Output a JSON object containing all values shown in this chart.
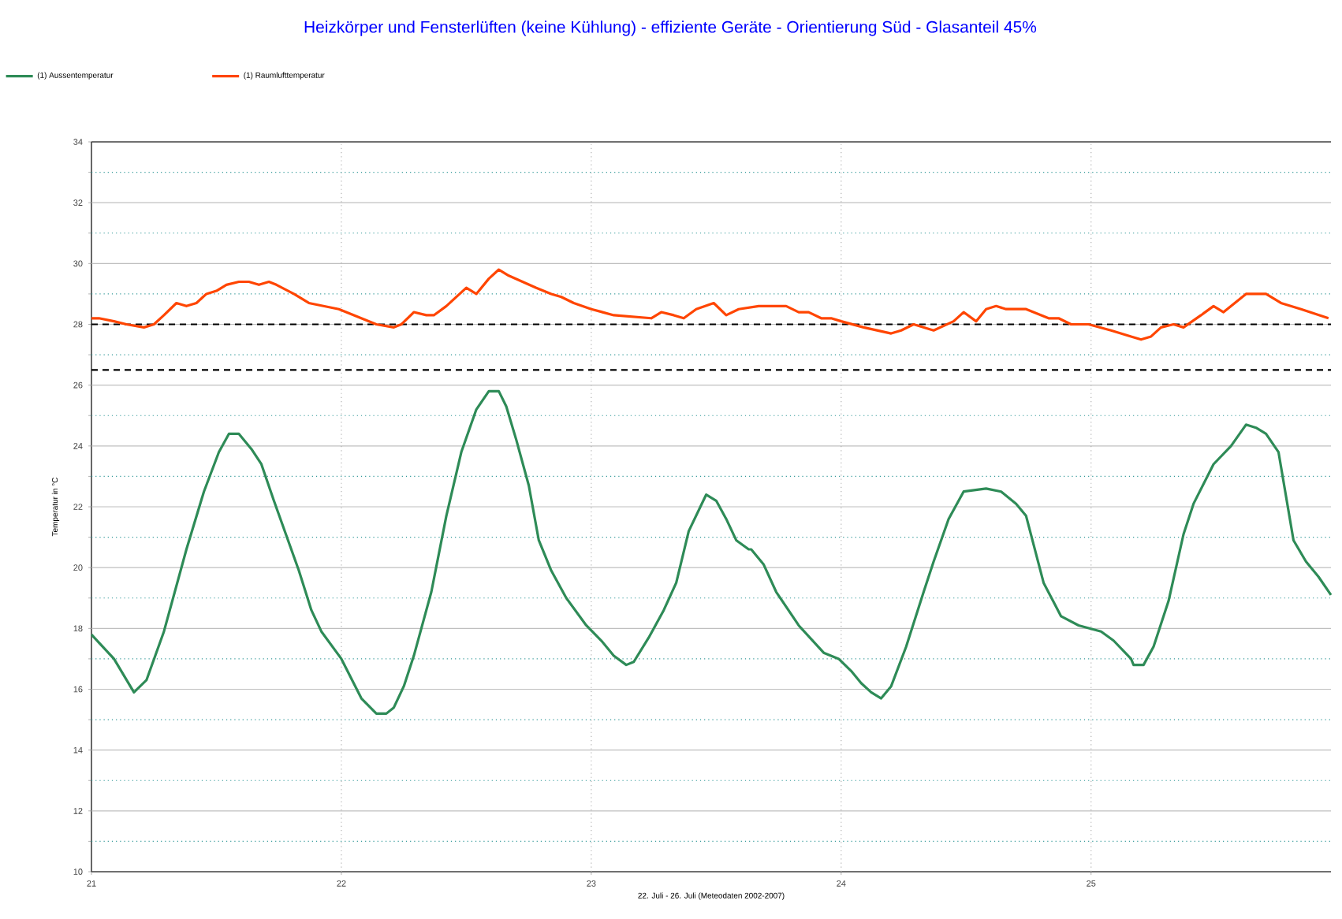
{
  "chart_data": {
    "type": "line",
    "title": "Heizkörper und Fensterlüften (keine Kühlung) - effiziente Geräte - Orientierung Süd - Glasanteil 45%",
    "xlabel": "22. Juli - 26. Juli (Meteodaten 2002-2007)",
    "ylabel": "Temperatur in °C",
    "xlim": [
      21,
      25.96
    ],
    "xticks": [
      21,
      22,
      23,
      24,
      25
    ],
    "ylim": [
      10,
      34
    ],
    "yticks": [
      10,
      {
        "value": 11,
        "label": null
      },
      12,
      {
        "value": 13,
        "label": null
      },
      14,
      {
        "value": 15,
        "label": null
      },
      16,
      {
        "value": 17,
        "label": null
      },
      18,
      {
        "value": 19,
        "label": null
      },
      20,
      {
        "value": 21,
        "label": null
      },
      22,
      {
        "value": 23,
        "label": null
      },
      24,
      {
        "value": 25,
        "label": null
      },
      26,
      {
        "value": 27,
        "label": null
      },
      28,
      {
        "value": 29,
        "label": null
      },
      30,
      {
        "value": 31,
        "label": null
      },
      32,
      {
        "value": 33,
        "label": null
      },
      34
    ],
    "grid": true,
    "legend": "top left",
    "line_style": "solid",
    "marker": "none",
    "ref_lines": [
      {
        "axis": "y",
        "value": 28,
        "color": "#000000",
        "line_style": "dashed"
      },
      {
        "axis": "y",
        "value": 26.5,
        "color": "#000000",
        "line_style": "dashed"
      }
    ],
    "series": [
      {
        "name": "(1) Aussentemperatur",
        "color": "#2e8b57",
        "x": [
          21.0,
          21.09,
          21.17,
          21.22,
          21.29,
          21.38,
          21.45,
          21.51,
          21.55,
          21.59,
          21.64,
          21.68,
          21.73,
          21.83,
          21.88,
          21.92,
          22.0,
          22.08,
          22.14,
          22.18,
          22.21,
          22.25,
          22.29,
          22.36,
          22.42,
          22.48,
          22.54,
          22.59,
          22.63,
          22.66,
          22.7,
          22.75,
          22.79,
          22.84,
          22.9,
          22.98,
          23.04,
          23.09,
          23.14,
          23.17,
          23.23,
          23.29,
          23.34,
          23.39,
          23.46,
          23.5,
          23.54,
          23.58,
          23.63,
          23.64,
          23.69,
          23.74,
          23.83,
          23.93,
          23.99,
          24.04,
          24.08,
          24.12,
          24.16,
          24.2,
          24.26,
          24.33,
          24.37,
          24.43,
          24.49,
          24.58,
          24.64,
          24.7,
          24.74,
          24.81,
          24.88,
          24.95,
          25.04,
          25.09,
          25.16,
          25.17,
          25.21,
          25.25,
          25.31,
          25.37,
          25.41,
          25.49,
          25.56,
          25.62,
          25.66,
          25.7,
          25.75,
          25.81,
          25.86,
          25.91,
          25.96
        ],
        "values": [
          17.8,
          17.0,
          15.9,
          16.3,
          17.9,
          20.6,
          22.5,
          23.8,
          24.4,
          24.4,
          23.9,
          23.4,
          22.2,
          19.9,
          18.6,
          17.9,
          17.0,
          15.7,
          15.2,
          15.2,
          15.4,
          16.1,
          17.1,
          19.2,
          21.7,
          23.8,
          25.2,
          25.8,
          25.8,
          25.3,
          24.2,
          22.7,
          20.9,
          19.9,
          19.0,
          18.1,
          17.6,
          17.1,
          16.8,
          16.9,
          17.7,
          18.6,
          19.5,
          21.2,
          22.4,
          22.2,
          21.6,
          20.9,
          20.6,
          20.6,
          20.1,
          19.2,
          18.1,
          17.2,
          17.0,
          16.6,
          16.2,
          15.9,
          15.7,
          16.1,
          17.4,
          19.2,
          20.2,
          21.6,
          22.5,
          22.6,
          22.5,
          22.1,
          21.7,
          19.5,
          18.4,
          18.1,
          17.9,
          17.6,
          17.0,
          16.8,
          16.8,
          17.4,
          18.9,
          21.1,
          22.1,
          23.4,
          24.0,
          24.7,
          24.6,
          24.4,
          23.8,
          20.9,
          20.2,
          19.7,
          19.1
        ]
      },
      {
        "name": "(1) Raumlufttemperatur",
        "color": "#ff4500",
        "x": [
          21.0,
          21.03,
          21.09,
          21.14,
          21.21,
          21.25,
          21.29,
          21.34,
          21.38,
          21.42,
          21.46,
          21.5,
          21.54,
          21.59,
          21.63,
          21.67,
          21.71,
          21.74,
          21.81,
          21.87,
          21.99,
          22.08,
          22.14,
          22.21,
          22.24,
          22.29,
          22.34,
          22.37,
          22.42,
          22.5,
          22.54,
          22.59,
          22.63,
          22.67,
          22.78,
          22.84,
          22.88,
          22.93,
          23.0,
          23.09,
          23.24,
          23.28,
          23.33,
          23.37,
          23.42,
          23.49,
          23.54,
          23.59,
          23.67,
          23.78,
          23.83,
          23.87,
          23.92,
          23.96,
          24.0,
          24.09,
          24.2,
          24.24,
          24.29,
          24.37,
          24.45,
          24.49,
          24.54,
          24.58,
          24.62,
          24.66,
          24.74,
          24.83,
          24.87,
          24.92,
          24.99,
          25.08,
          25.16,
          25.2,
          25.24,
          25.28,
          25.33,
          25.37,
          25.44,
          25.49,
          25.53,
          25.62,
          25.7,
          25.76,
          25.84,
          25.95
        ],
        "values": [
          28.2,
          28.2,
          28.1,
          28.0,
          27.9,
          28.0,
          28.3,
          28.7,
          28.6,
          28.7,
          29.0,
          29.1,
          29.3,
          29.4,
          29.4,
          29.3,
          29.4,
          29.3,
          29.0,
          28.7,
          28.5,
          28.2,
          28.0,
          27.9,
          28.0,
          28.4,
          28.3,
          28.3,
          28.6,
          29.2,
          29.0,
          29.5,
          29.8,
          29.6,
          29.2,
          29.0,
          28.9,
          28.7,
          28.5,
          28.3,
          28.2,
          28.4,
          28.3,
          28.2,
          28.5,
          28.7,
          28.3,
          28.5,
          28.6,
          28.6,
          28.4,
          28.4,
          28.2,
          28.2,
          28.1,
          27.9,
          27.7,
          27.8,
          28.0,
          27.8,
          28.1,
          28.4,
          28.1,
          28.5,
          28.6,
          28.5,
          28.5,
          28.2,
          28.2,
          28.0,
          28.0,
          27.8,
          27.6,
          27.5,
          27.6,
          27.9,
          28.0,
          27.9,
          28.3,
          28.6,
          28.4,
          29.0,
          29.0,
          28.7,
          28.5,
          28.2
        ]
      }
    ]
  }
}
